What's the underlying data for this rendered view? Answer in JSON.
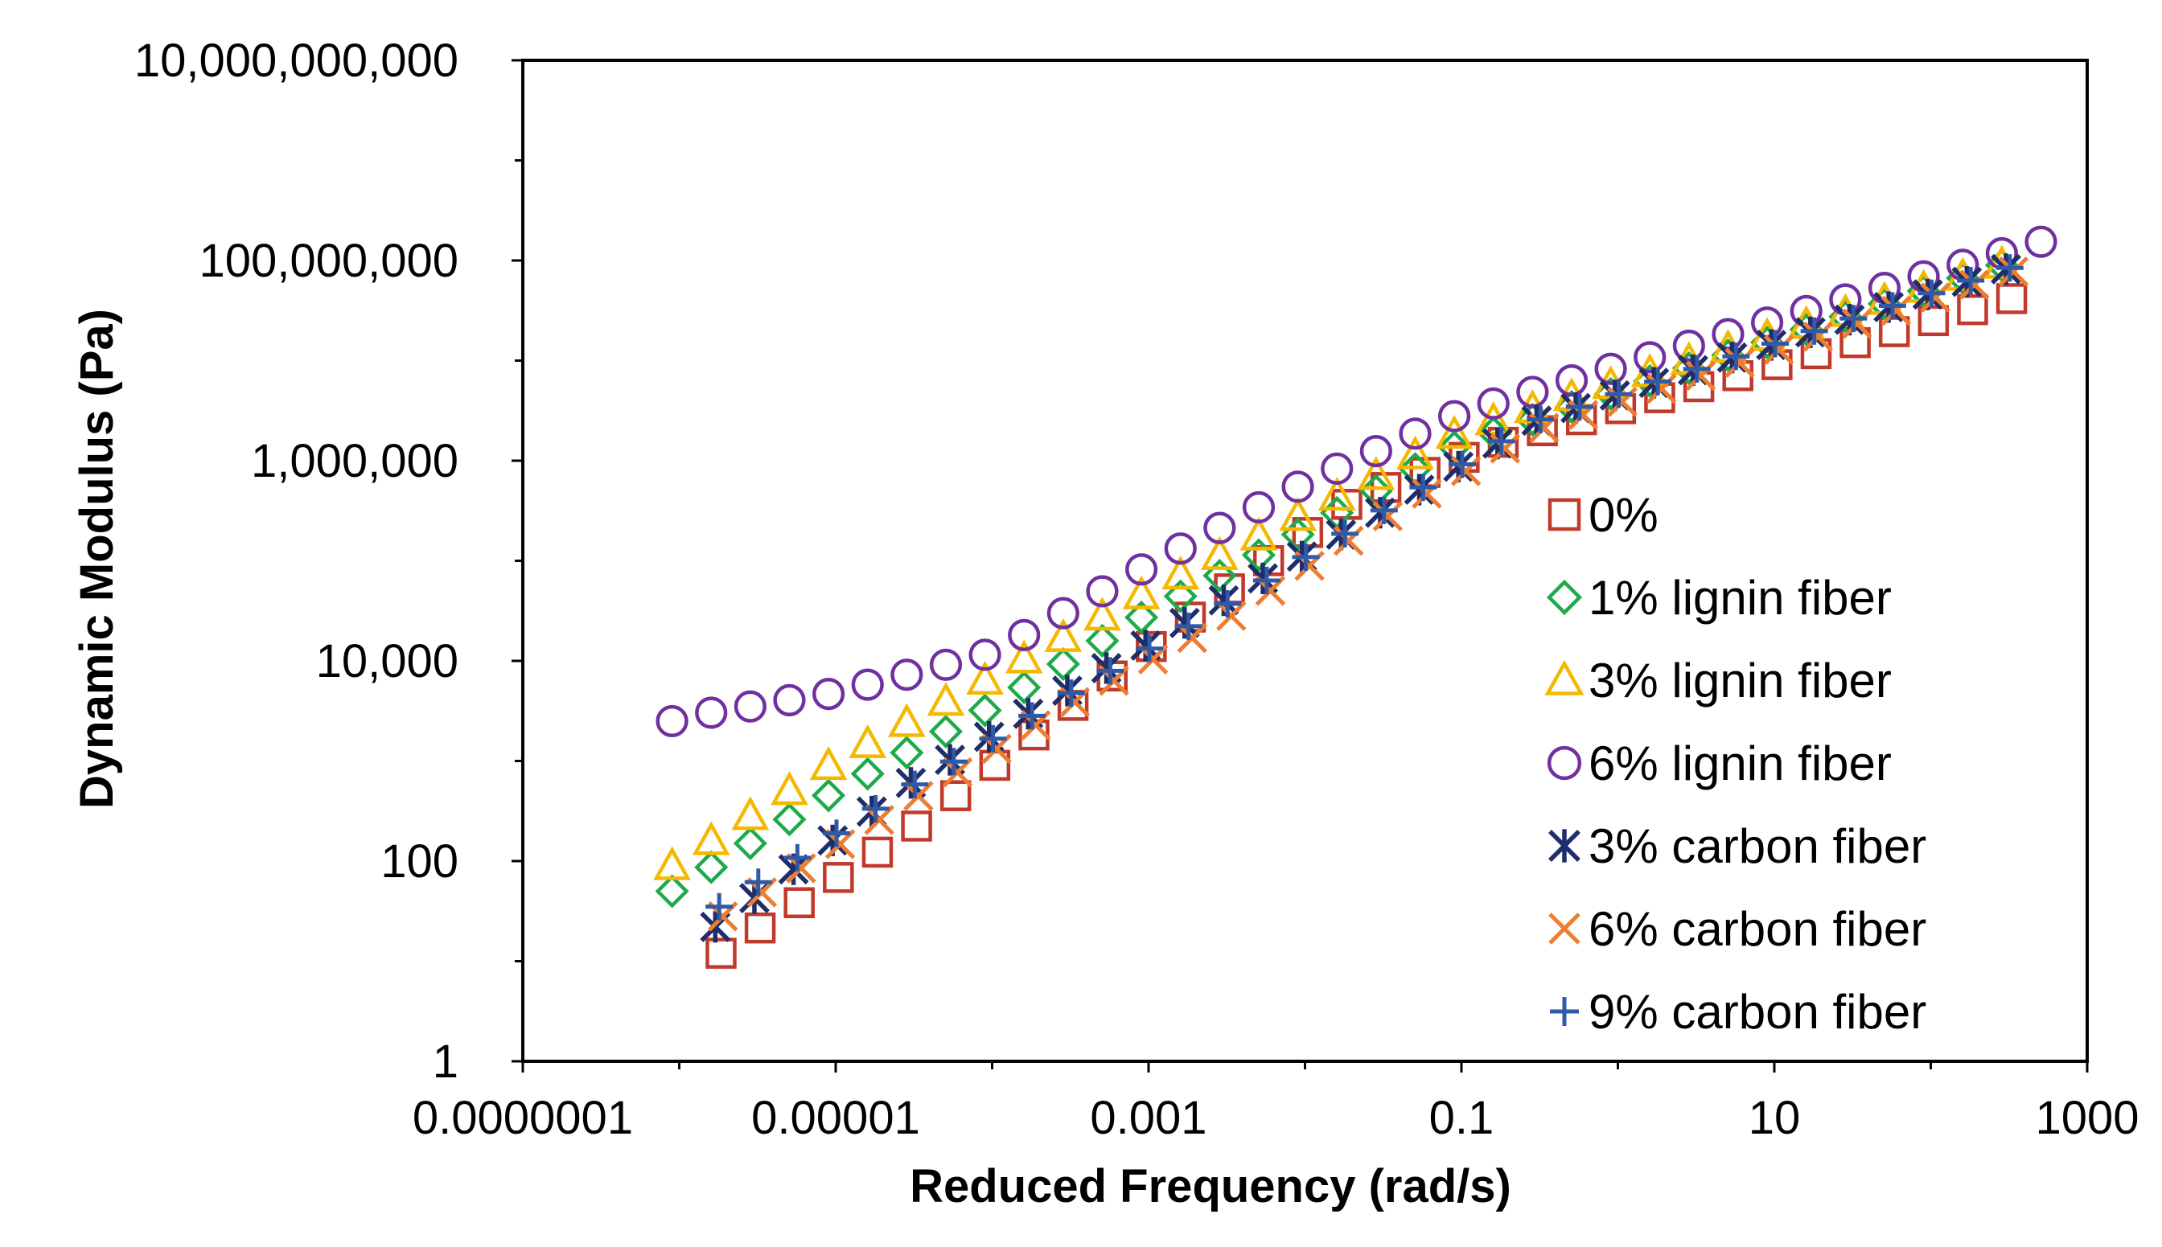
{
  "chart_data": {
    "type": "scatter",
    "title": "",
    "xlabel": "Reduced Frequency (rad/s)",
    "ylabel": "Dynamic Modulus (Pa)",
    "xscale": "log",
    "yscale": "log",
    "xlim": [
      1e-07,
      1000
    ],
    "ylim": [
      1,
      10000000000
    ],
    "xticks": [
      {
        "value": 1e-07,
        "label": "0.0000001"
      },
      {
        "value": 1e-05,
        "label": "0.00001"
      },
      {
        "value": 0.001,
        "label": "0.001"
      },
      {
        "value": 0.1,
        "label": "0.1"
      },
      {
        "value": 10,
        "label": "10"
      },
      {
        "value": 1000,
        "label": "1000"
      }
    ],
    "yticks": [
      {
        "value": 1,
        "label": "1"
      },
      {
        "value": 100,
        "label": "100"
      },
      {
        "value": 10000,
        "label": "10,000"
      },
      {
        "value": 1000000,
        "label": "1,000,000"
      },
      {
        "value": 100000000,
        "label": "100,000,000"
      },
      {
        "value": 10000000000,
        "label": "10,000,000,000"
      }
    ],
    "grid": false,
    "legend_position": "lower-right inside",
    "series": [
      {
        "name": "0%",
        "marker": "square",
        "color": "#c0392b",
        "x_range": [
          1.85e-06,
          500
        ],
        "y_range": [
          12,
          50000000
        ],
        "x_breaks": [
          3e-05,
          0.0002,
          0.002,
          0.02,
          0.2
        ],
        "y_breaks": [
          200,
          2000,
          30000,
          400000,
          1600000
        ]
      },
      {
        "name": "1% lignin fiber",
        "marker": "diamond",
        "color": "#1faa4a",
        "x_range": [
          9e-07,
          500
        ],
        "y_range": [
          50,
          120000000
        ],
        "x_breaks": [
          1e-05,
          0.0001,
          0.001,
          0.01,
          0.1
        ],
        "y_breaks": [
          500,
          3500,
          30000,
          200000,
          1500000
        ]
      },
      {
        "name": "3% lignin fiber",
        "marker": "triangle",
        "color": "#f5b800",
        "x_range": [
          9e-07,
          500
        ],
        "y_range": [
          90,
          120000000
        ],
        "x_breaks": [
          1e-05,
          0.0001,
          0.001,
          0.01,
          0.1
        ],
        "y_breaks": [
          1000,
          7000,
          50000,
          300000,
          2000000
        ]
      },
      {
        "name": "6% lignin fiber",
        "marker": "circle",
        "color": "#7030a0",
        "x_range": [
          9e-07,
          550
        ],
        "y_range": [
          2500,
          160000000
        ],
        "x_breaks": [
          1e-06,
          1e-05,
          0.0001,
          0.001,
          0.01,
          0.1
        ],
        "y_breaks": [
          2700,
          4800,
          12000,
          90000,
          600000,
          3000000
        ]
      },
      {
        "name": "3% carbon fiber",
        "marker": "asterisk",
        "color": "#1f2d6b",
        "x_range": [
          1.7e-06,
          450
        ],
        "y_range": [
          22,
          100000000
        ],
        "x_breaks": [
          3e-05,
          0.0003,
          0.003,
          0.03,
          0.3
        ],
        "y_breaks": [
          600,
          5000,
          40000,
          300000,
          2500000
        ]
      },
      {
        "name": "6% carbon fiber",
        "marker": "x",
        "color": "#ed7d31",
        "x_range": [
          1.9e-06,
          450
        ],
        "y_range": [
          28,
          90000000
        ],
        "x_breaks": [
          3e-05,
          0.0003,
          0.003,
          0.03,
          0.3
        ],
        "y_breaks": [
          400,
          3500,
          25000,
          250000,
          2000000
        ]
      },
      {
        "name": "9% carbon fiber",
        "marker": "plus",
        "color": "#2e5aa8",
        "x_range": [
          1.8e-06,
          450
        ],
        "y_range": [
          35,
          100000000
        ],
        "x_breaks": [
          3e-05,
          0.0003,
          0.003,
          0.03,
          0.3
        ],
        "y_breaks": [
          550,
          4500,
          35000,
          300000,
          2500000
        ]
      }
    ],
    "points_per_decade": 4
  }
}
